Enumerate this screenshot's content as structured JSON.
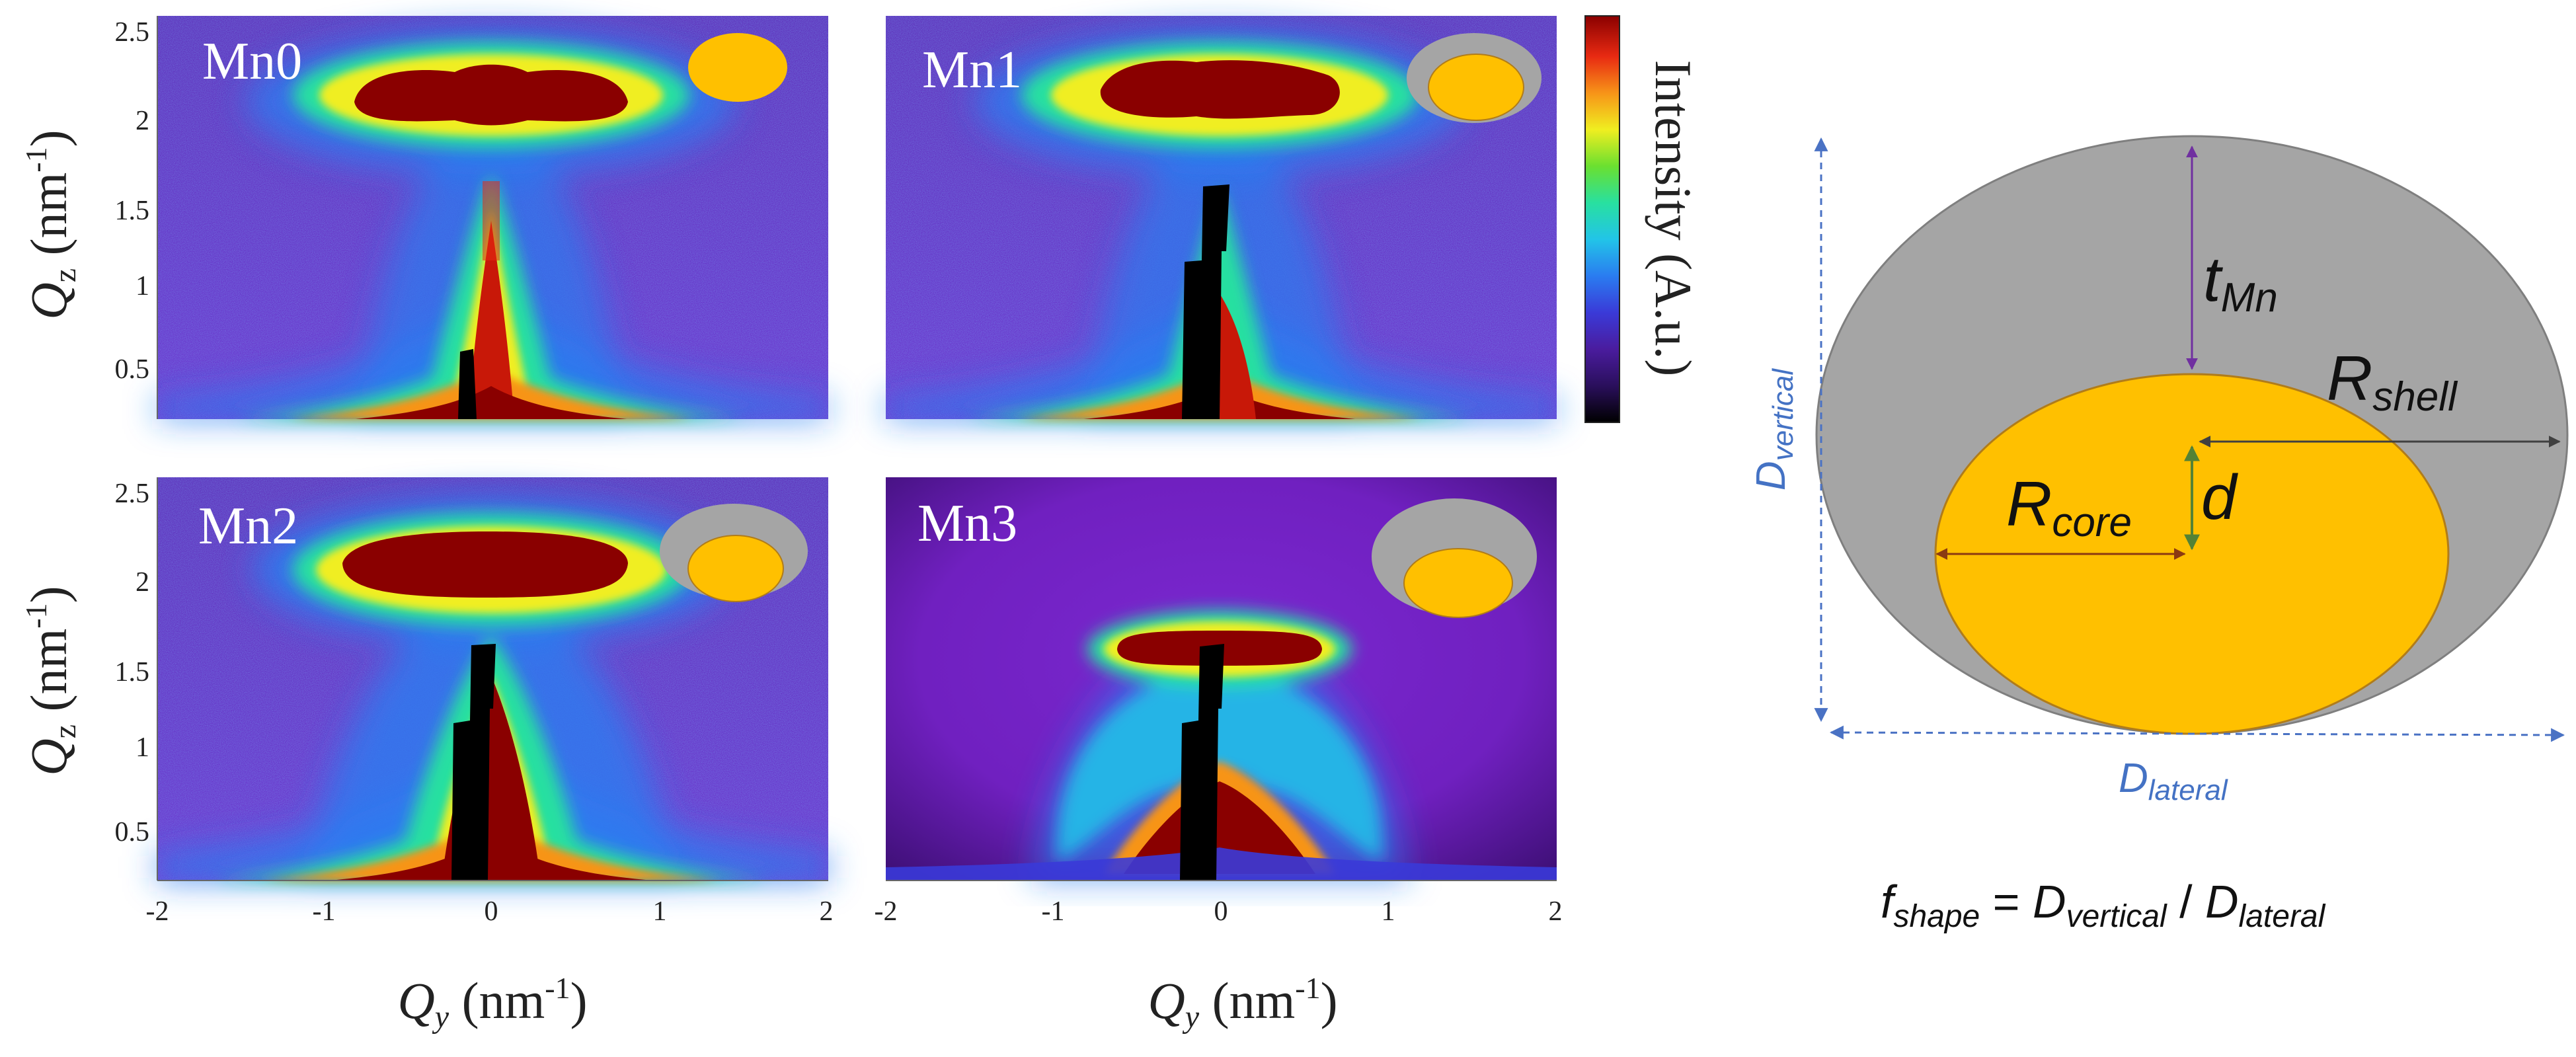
{
  "panels": [
    {
      "id": "mn0",
      "label": "Mn0",
      "has_shell": false
    },
    {
      "id": "mn1",
      "label": "Mn1",
      "has_shell": true
    },
    {
      "id": "mn2",
      "label": "Mn2",
      "has_shell": true
    },
    {
      "id": "mn3",
      "label": "Mn3",
      "has_shell": true
    }
  ],
  "axes": {
    "y_label_main": "Q",
    "y_label_sub": "z",
    "y_label_unit": "(nm",
    "y_label_exp": "-1",
    "y_label_close": ")",
    "x_label_main": "Q",
    "x_label_sub": "y",
    "x_label_unit": "(nm",
    "x_label_exp": "-1",
    "x_label_close": ")",
    "y_ticks": [
      "2.5",
      "2",
      "1.5",
      "1",
      "0.5"
    ],
    "x_ticks_left": [
      "-2",
      "-1",
      "0",
      "1",
      "2"
    ],
    "x_ticks_right": [
      "-2",
      "-1",
      "0",
      "1",
      "2"
    ]
  },
  "colorbar": {
    "label": "Intensity (A.u.)",
    "colors": [
      "#000000",
      "#2a0f5c",
      "#4a1c9e",
      "#3a3ad8",
      "#2a7cf0",
      "#22c4e8",
      "#28e0a0",
      "#6ae030",
      "#f0ee20",
      "#f79418",
      "#e82a12",
      "#8a0000"
    ]
  },
  "diagram": {
    "d_vertical": "D",
    "d_vertical_sub": "vertical",
    "d_lateral": "D",
    "d_lateral_sub": "lateral",
    "t_mn": "t",
    "t_mn_sub": "Mn",
    "r_shell": "R",
    "r_shell_sub": "shell",
    "r_core": "R",
    "r_core_sub": "core",
    "d_offset": "d",
    "formula_f": "f",
    "formula_f_sub": "shape",
    "formula_eq": " = ",
    "formula_num": "D",
    "formula_num_sub": "vertical",
    "formula_slash": " / ",
    "formula_den": "D",
    "formula_den_sub": "lateral"
  },
  "colors": {
    "shell_gray": "#a5a5a5",
    "core_gold": "#ffc000",
    "core_stroke": "#b07c1a",
    "arrow_blue": "#4a72c4",
    "arrow_purple": "#7030a0",
    "arrow_dark": "#404040",
    "arrow_red": "#8b3a12",
    "arrow_green": "#548235",
    "label_blue": "#4472c4"
  }
}
